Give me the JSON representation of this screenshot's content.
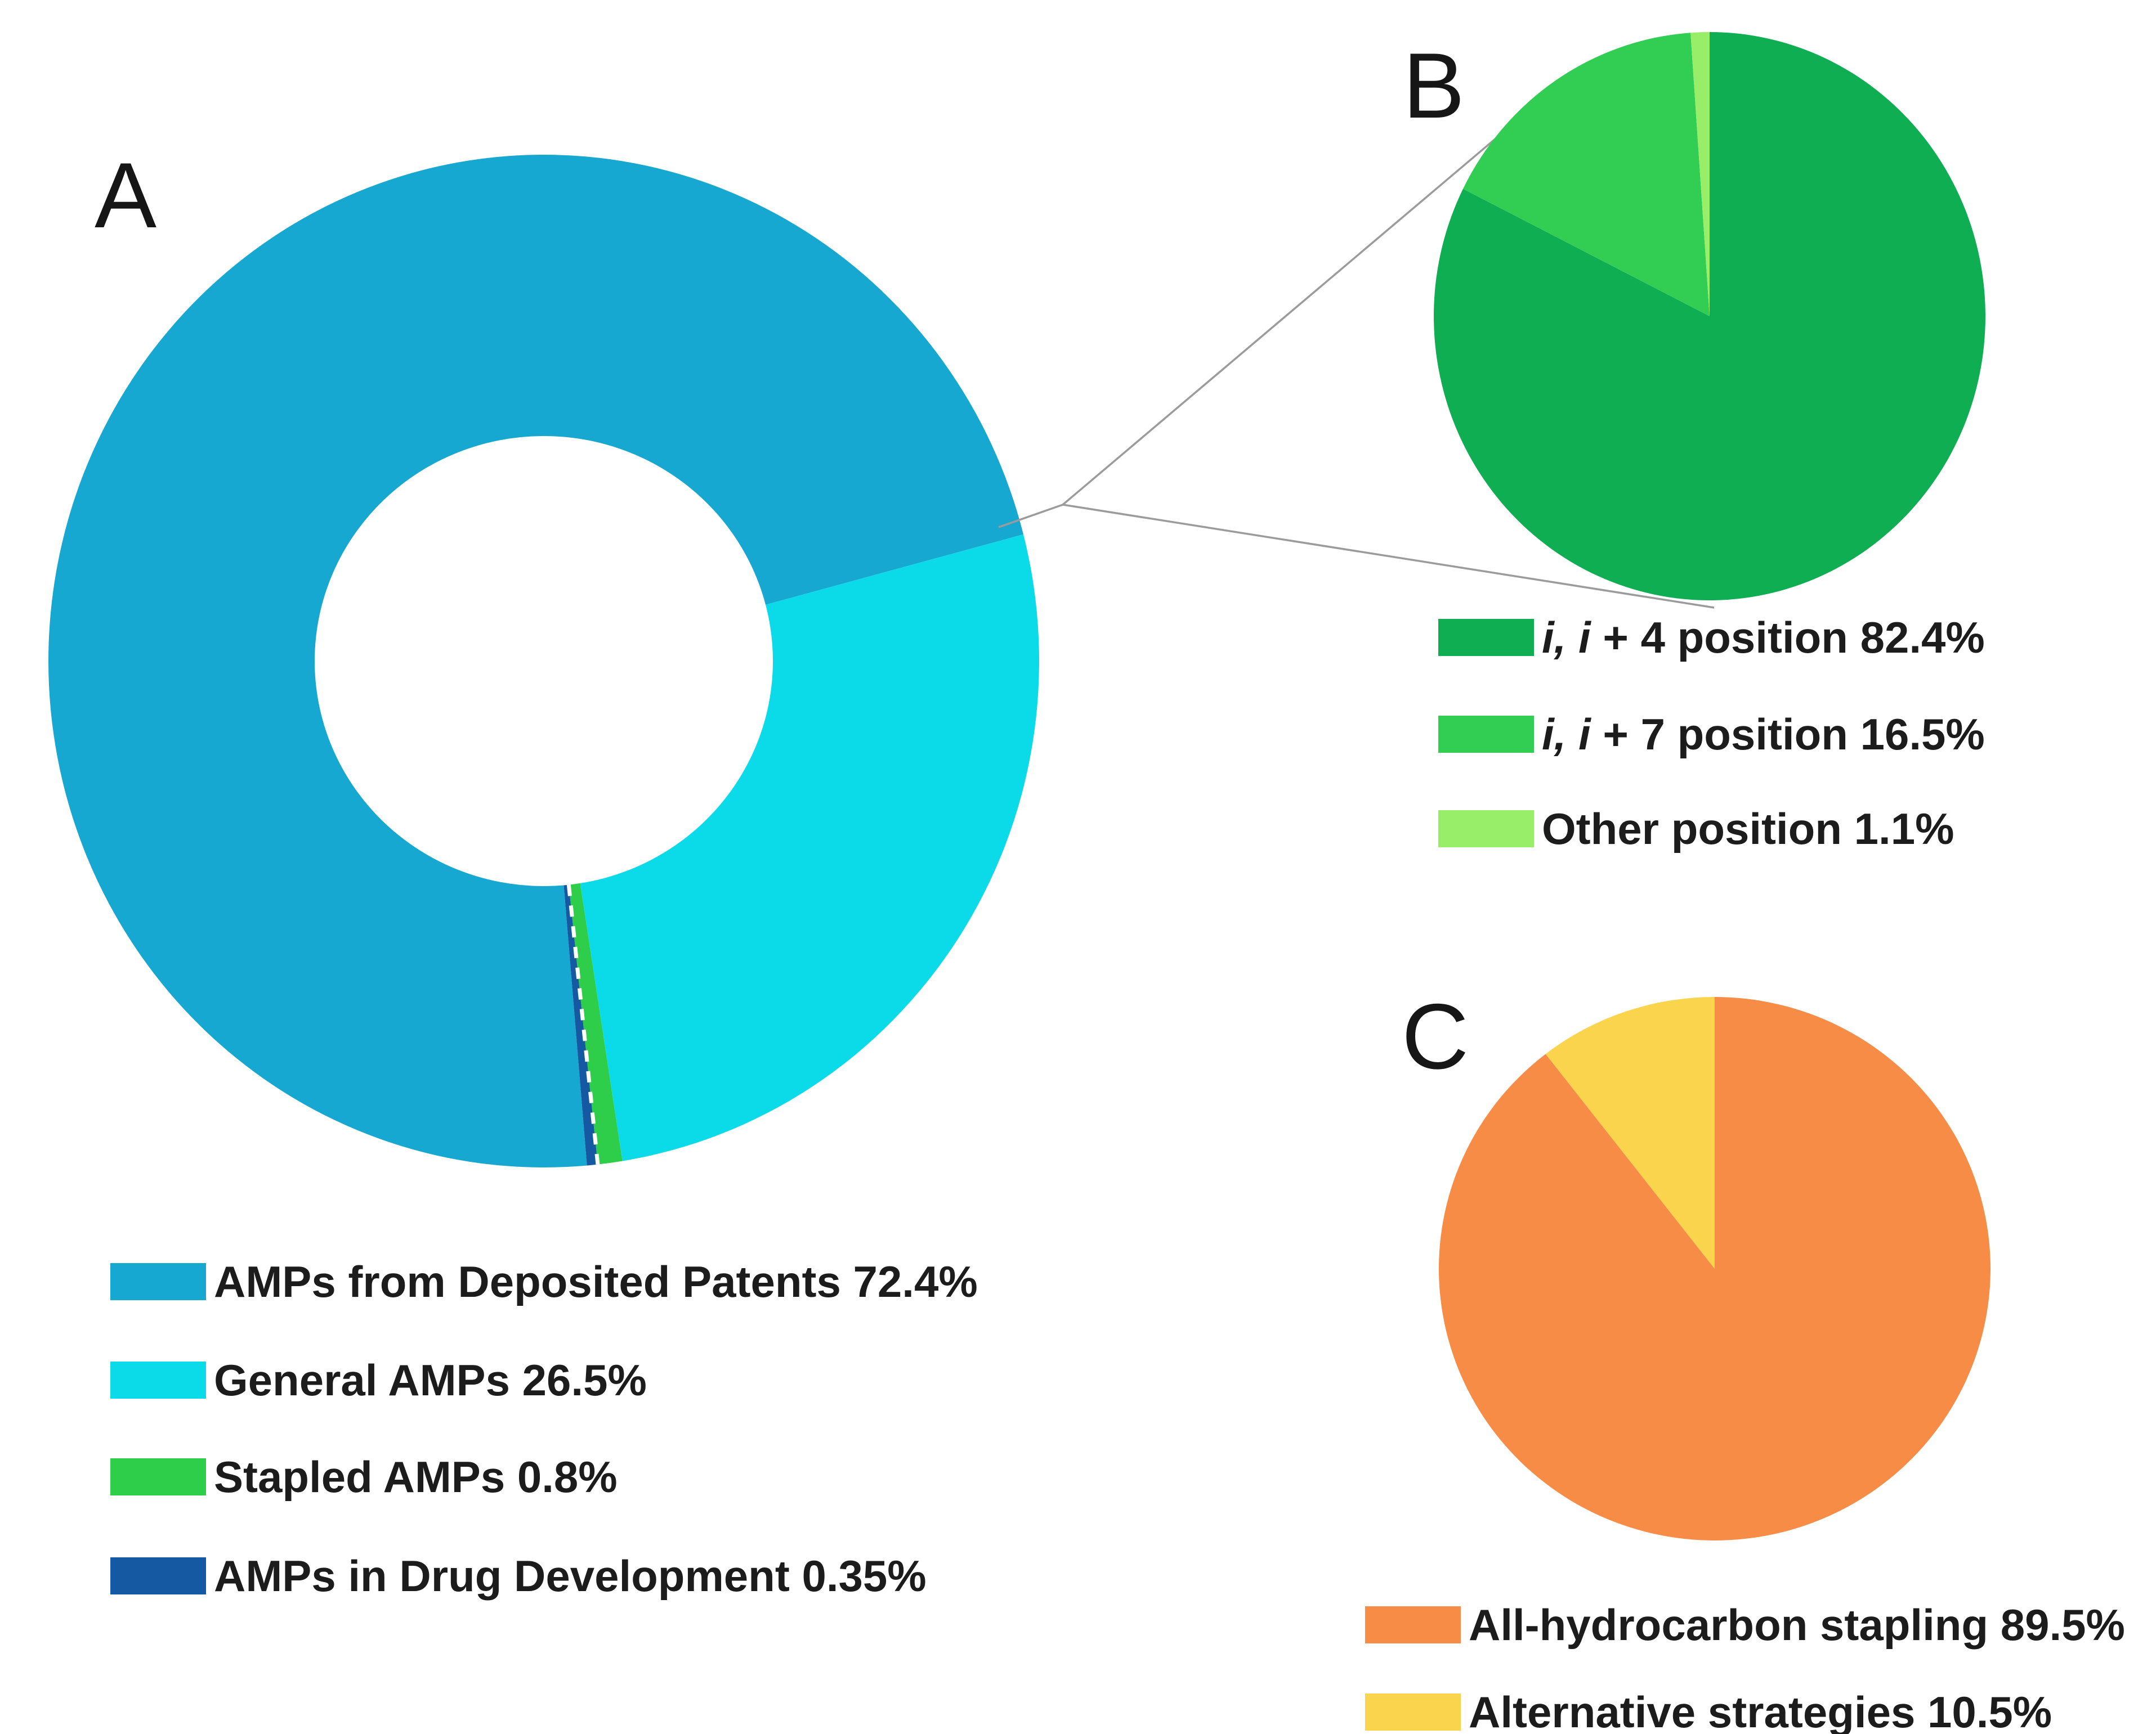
{
  "figure": {
    "background": "#ffffff",
    "panel_a": {
      "label": "A",
      "legend": [
        {
          "text": "AMPs from Deposited Patents 72.4%"
        },
        {
          "text": "General AMPs 26.5%"
        },
        {
          "text": "Stapled AMPs 0.8%"
        },
        {
          "text": "AMPs in Drug Development 0.35%"
        }
      ]
    },
    "panel_b": {
      "label": "B",
      "legend": [
        {
          "italic": "i, i",
          "text": " + 4 position 82.4%"
        },
        {
          "italic": "i, i",
          "text": " + 7 position 16.5%"
        },
        {
          "italic": "",
          "text": "Other position 1.1%"
        }
      ]
    },
    "panel_c": {
      "label": "C",
      "legend": [
        {
          "text": "All-hydrocarbon stapling 89.5%"
        },
        {
          "text": "Alternative strategies 10.5%"
        }
      ]
    }
  },
  "chart_data": [
    {
      "type": "pie",
      "subtype": "donut",
      "panel": "A",
      "title": "",
      "start_angle_deg": 175,
      "direction": "clockwise",
      "categories": [
        "AMPs from Deposited Patents",
        "General AMPs",
        "Stapled AMPs",
        "AMPs in Drug Development"
      ],
      "values": [
        72.4,
        26.5,
        0.8,
        0.35
      ],
      "unit": "%",
      "colors": [
        "#17A8D2",
        "#0BDBE8",
        "#2FCE4A",
        "#1659A3"
      ],
      "legend_position": "below-left",
      "dashed_separator_after_index": 2,
      "callout_to_panel": "B"
    },
    {
      "type": "pie",
      "subtype": "pie",
      "panel": "B",
      "title": "",
      "start_angle_deg": 0,
      "direction": "clockwise",
      "categories": [
        "i, i + 4 position",
        "i, i + 7 position",
        "Other position"
      ],
      "values": [
        82.4,
        16.5,
        1.1
      ],
      "unit": "%",
      "colors": [
        "#0FAE52",
        "#31CE53",
        "#98EE68"
      ],
      "legend_position": "below"
    },
    {
      "type": "pie",
      "subtype": "pie",
      "panel": "C",
      "title": "",
      "start_angle_deg": 0,
      "direction": "clockwise",
      "categories": [
        "All-hydrocarbon stapling",
        "Alternative strategies"
      ],
      "values": [
        89.5,
        10.5
      ],
      "unit": "%",
      "colors": [
        "#F78C46",
        "#FBD44D"
      ],
      "legend_position": "below"
    }
  ]
}
